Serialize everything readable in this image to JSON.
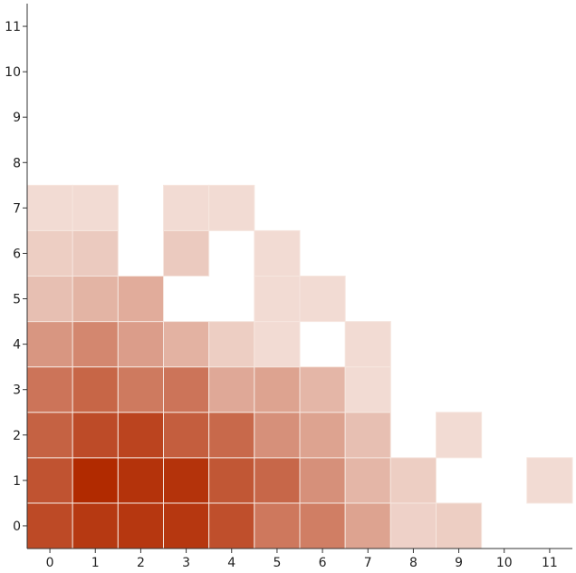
{
  "chart_data": {
    "type": "heatmap",
    "title": "",
    "xlabel": "",
    "ylabel": "",
    "x_ticks": [
      "0",
      "1",
      "2",
      "3",
      "4",
      "5",
      "6",
      "7",
      "8",
      "9",
      "10",
      "11"
    ],
    "y_ticks": [
      "0",
      "1",
      "2",
      "3",
      "4",
      "5",
      "6",
      "7",
      "8",
      "9",
      "10",
      "11"
    ],
    "xlim": [
      -0.5,
      11.5
    ],
    "ylim": [
      -0.5,
      11.5
    ],
    "grid": false,
    "legend": "none",
    "color_scale": {
      "low": "#f5e4de",
      "high": "#b12a00"
    },
    "value_range": [
      0,
      1
    ],
    "cells": [
      {
        "x": 0,
        "y": 0,
        "v": 0.83
      },
      {
        "x": 1,
        "y": 0,
        "v": 0.92
      },
      {
        "x": 2,
        "y": 0,
        "v": 0.93
      },
      {
        "x": 3,
        "y": 0,
        "v": 0.93
      },
      {
        "x": 4,
        "y": 0,
        "v": 0.8
      },
      {
        "x": 5,
        "y": 0,
        "v": 0.58
      },
      {
        "x": 6,
        "y": 0,
        "v": 0.55
      },
      {
        "x": 7,
        "y": 0,
        "v": 0.35
      },
      {
        "x": 8,
        "y": 0,
        "v": 0.1
      },
      {
        "x": 9,
        "y": 0,
        "v": 0.12
      },
      {
        "x": 0,
        "y": 1,
        "v": 0.78
      },
      {
        "x": 1,
        "y": 1,
        "v": 1.0
      },
      {
        "x": 2,
        "y": 1,
        "v": 0.95
      },
      {
        "x": 3,
        "y": 1,
        "v": 0.95
      },
      {
        "x": 4,
        "y": 1,
        "v": 0.76
      },
      {
        "x": 5,
        "y": 1,
        "v": 0.67
      },
      {
        "x": 6,
        "y": 1,
        "v": 0.45
      },
      {
        "x": 7,
        "y": 1,
        "v": 0.25
      },
      {
        "x": 8,
        "y": 1,
        "v": 0.12
      },
      {
        "x": 11,
        "y": 1,
        "v": 0.05
      },
      {
        "x": 0,
        "y": 2,
        "v": 0.7
      },
      {
        "x": 1,
        "y": 2,
        "v": 0.82
      },
      {
        "x": 2,
        "y": 2,
        "v": 0.86
      },
      {
        "x": 3,
        "y": 2,
        "v": 0.72
      },
      {
        "x": 4,
        "y": 2,
        "v": 0.66
      },
      {
        "x": 5,
        "y": 2,
        "v": 0.45
      },
      {
        "x": 6,
        "y": 2,
        "v": 0.35
      },
      {
        "x": 7,
        "y": 2,
        "v": 0.2
      },
      {
        "x": 9,
        "y": 2,
        "v": 0.05
      },
      {
        "x": 0,
        "y": 3,
        "v": 0.6
      },
      {
        "x": 1,
        "y": 3,
        "v": 0.68
      },
      {
        "x": 2,
        "y": 3,
        "v": 0.57
      },
      {
        "x": 3,
        "y": 3,
        "v": 0.6
      },
      {
        "x": 4,
        "y": 3,
        "v": 0.32
      },
      {
        "x": 5,
        "y": 3,
        "v": 0.35
      },
      {
        "x": 6,
        "y": 3,
        "v": 0.25
      },
      {
        "x": 7,
        "y": 3,
        "v": 0.05
      },
      {
        "x": 0,
        "y": 4,
        "v": 0.42
      },
      {
        "x": 1,
        "y": 4,
        "v": 0.5
      },
      {
        "x": 2,
        "y": 4,
        "v": 0.38
      },
      {
        "x": 3,
        "y": 4,
        "v": 0.27
      },
      {
        "x": 4,
        "y": 4,
        "v": 0.12
      },
      {
        "x": 5,
        "y": 4,
        "v": 0.05
      },
      {
        "x": 7,
        "y": 4,
        "v": 0.05
      },
      {
        "x": 0,
        "y": 5,
        "v": 0.2
      },
      {
        "x": 1,
        "y": 5,
        "v": 0.26
      },
      {
        "x": 2,
        "y": 5,
        "v": 0.3
      },
      {
        "x": 5,
        "y": 5,
        "v": 0.05
      },
      {
        "x": 6,
        "y": 5,
        "v": 0.05
      },
      {
        "x": 0,
        "y": 6,
        "v": 0.12
      },
      {
        "x": 1,
        "y": 6,
        "v": 0.14
      },
      {
        "x": 3,
        "y": 6,
        "v": 0.14
      },
      {
        "x": 5,
        "y": 6,
        "v": 0.05
      },
      {
        "x": 0,
        "y": 7,
        "v": 0.05
      },
      {
        "x": 1,
        "y": 7,
        "v": 0.05
      },
      {
        "x": 3,
        "y": 7,
        "v": 0.05
      },
      {
        "x": 4,
        "y": 7,
        "v": 0.05
      }
    ]
  }
}
